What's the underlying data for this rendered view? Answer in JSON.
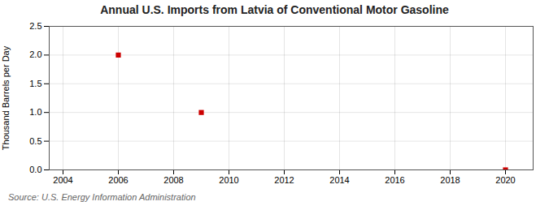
{
  "chart_data": {
    "type": "scatter",
    "title": "Annual U.S. Imports from Latvia of Conventional Motor Gasoline",
    "ylabel": "Thousand Barrels per Day",
    "annotation": "Source: U.S. Energy Information Administration",
    "x": [
      2006,
      2009,
      2020
    ],
    "values": [
      2.0,
      1.0,
      0.0
    ],
    "color": "#cc0000",
    "marker": "square",
    "xlim": [
      2003.5,
      2021
    ],
    "ylim": [
      0.0,
      2.5
    ],
    "xticks": [
      2004,
      2006,
      2008,
      2010,
      2012,
      2014,
      2016,
      2018,
      2020
    ],
    "yticks": [
      {
        "value": 0.0,
        "label": "0.0"
      },
      {
        "value": 0.5,
        "label": "0.5"
      },
      {
        "value": 1.0,
        "label": "1.0"
      },
      {
        "value": 1.5,
        "label": "1.5"
      },
      {
        "value": 2.0,
        "label": "2.0"
      },
      {
        "value": 2.5,
        "label": "2.5"
      }
    ],
    "grid": true
  }
}
